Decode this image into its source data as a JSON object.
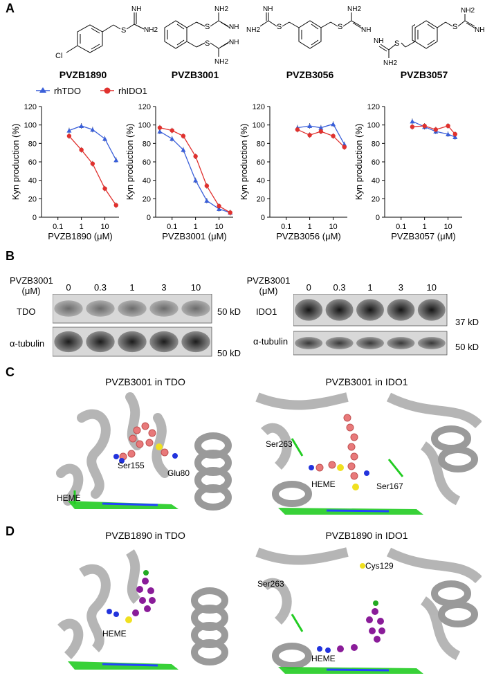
{
  "panels": {
    "a": "A",
    "b": "B",
    "c": "C",
    "d": "D"
  },
  "compounds": [
    {
      "name": "PVZB1890",
      "atoms": [
        "NH",
        "NH2",
        "S",
        "Cl"
      ]
    },
    {
      "name": "PVZB3001",
      "atoms": [
        "NH2",
        "NH",
        "S",
        "S",
        "NH",
        "NH2"
      ]
    },
    {
      "name": "PVZB3056",
      "atoms": [
        "NH",
        "NH2",
        "S",
        "S",
        "NH2",
        "NH"
      ]
    },
    {
      "name": "PVZB3057",
      "atoms": [
        "NH",
        "NH2",
        "S",
        "S",
        "NH2",
        "NH"
      ]
    }
  ],
  "legend": {
    "tdo": "rhTDO",
    "ido": "rhIDO1"
  },
  "colors": {
    "tdo": "#3a5fd9",
    "ido": "#e0312e",
    "heme": "#22cc22",
    "ligand3001": "#e8797a",
    "ligand1890": "#8a1c99",
    "protein": "#b9b9b9"
  },
  "chart_data": [
    {
      "type": "line",
      "xlabel": "PVZB1890 (μM)",
      "ylabel": "Kyn production (%)",
      "xscale": "log",
      "xticks": [
        "0.1",
        "1",
        "10"
      ],
      "yticks": [
        0,
        20,
        40,
        60,
        80,
        100,
        120
      ],
      "ylim": [
        0,
        120
      ],
      "series": [
        {
          "name": "rhTDO",
          "x": [
            0.3,
            1,
            3,
            10,
            30
          ],
          "y": [
            94,
            99,
            95,
            85,
            62
          ]
        },
        {
          "name": "rhIDO1",
          "x": [
            0.3,
            1,
            3,
            10,
            30
          ],
          "y": [
            88,
            73,
            58,
            31,
            13
          ]
        }
      ]
    },
    {
      "type": "line",
      "xlabel": "PVZB3001 (μM)",
      "ylabel": "Kyn production (%)",
      "xscale": "log",
      "xticks": [
        "0.1",
        "1",
        "10"
      ],
      "yticks": [
        0,
        20,
        40,
        60,
        80,
        100,
        120
      ],
      "ylim": [
        0,
        120
      ],
      "series": [
        {
          "name": "rhTDO",
          "x": [
            0.03,
            0.1,
            0.3,
            1,
            3,
            10,
            30
          ],
          "y": [
            93,
            85,
            73,
            40,
            18,
            9,
            5
          ]
        },
        {
          "name": "rhIDO1",
          "x": [
            0.03,
            0.1,
            0.3,
            1,
            3,
            10,
            30
          ],
          "y": [
            97,
            94,
            88,
            66,
            34,
            12,
            5
          ]
        }
      ]
    },
    {
      "type": "line",
      "xlabel": "PVZB3056 (μM)",
      "ylabel": "Kyn production (%)",
      "xscale": "log",
      "xticks": [
        "0.1",
        "1",
        "10"
      ],
      "yticks": [
        0,
        20,
        40,
        60,
        80,
        100,
        120
      ],
      "ylim": [
        0,
        120
      ],
      "series": [
        {
          "name": "rhTDO",
          "x": [
            0.3,
            1,
            3,
            10,
            30
          ],
          "y": [
            97,
            99,
            97,
            101,
            79
          ]
        },
        {
          "name": "rhIDO1",
          "x": [
            0.3,
            1,
            3,
            10,
            30
          ],
          "y": [
            95,
            89,
            93,
            88,
            76
          ]
        }
      ]
    },
    {
      "type": "line",
      "xlabel": "PVZB3057 (μM)",
      "ylabel": "Kyn production (%)",
      "xscale": "log",
      "xticks": [
        "0.1",
        "1",
        "10"
      ],
      "yticks": [
        0,
        20,
        40,
        60,
        80,
        100,
        120
      ],
      "ylim": [
        0,
        120
      ],
      "series": [
        {
          "name": "rhTDO",
          "x": [
            0.3,
            1,
            3,
            10,
            20
          ],
          "y": [
            104,
            98,
            93,
            90,
            87
          ]
        },
        {
          "name": "rhIDO1",
          "x": [
            0.3,
            1,
            3,
            10,
            20
          ],
          "y": [
            98,
            99,
            95,
            99,
            90
          ]
        }
      ]
    }
  ],
  "blot_left": {
    "treatment": "PVZB3001",
    "unit": "(μM)",
    "doses": [
      "0",
      "0.3",
      "1",
      "3",
      "10"
    ],
    "rows": [
      {
        "label": "TDO",
        "marker": "50 kD"
      },
      {
        "label": "α-tubulin",
        "marker": "50 kD"
      }
    ]
  },
  "blot_right": {
    "treatment": "PVZB3001",
    "unit": "(μM)",
    "doses": [
      "0",
      "0.3",
      "1",
      "3",
      "10"
    ],
    "rows": [
      {
        "label": "IDO1",
        "marker": "37 kD"
      },
      {
        "label": "α-tubulin",
        "marker": "50 kD"
      }
    ]
  },
  "structures": [
    {
      "title": "PVZB3001 in TDO",
      "labels": [
        "Ser155",
        "Glu80",
        "HEME"
      ]
    },
    {
      "title": "PVZB3001 in IDO1",
      "labels": [
        "Ser263",
        "HEME",
        "Ser167"
      ]
    },
    {
      "title": "PVZB1890 in TDO",
      "labels": [
        "HEME"
      ]
    },
    {
      "title": "PVZB1890 in IDO1",
      "labels": [
        "Cys129",
        "Ser263",
        "HEME"
      ]
    }
  ]
}
